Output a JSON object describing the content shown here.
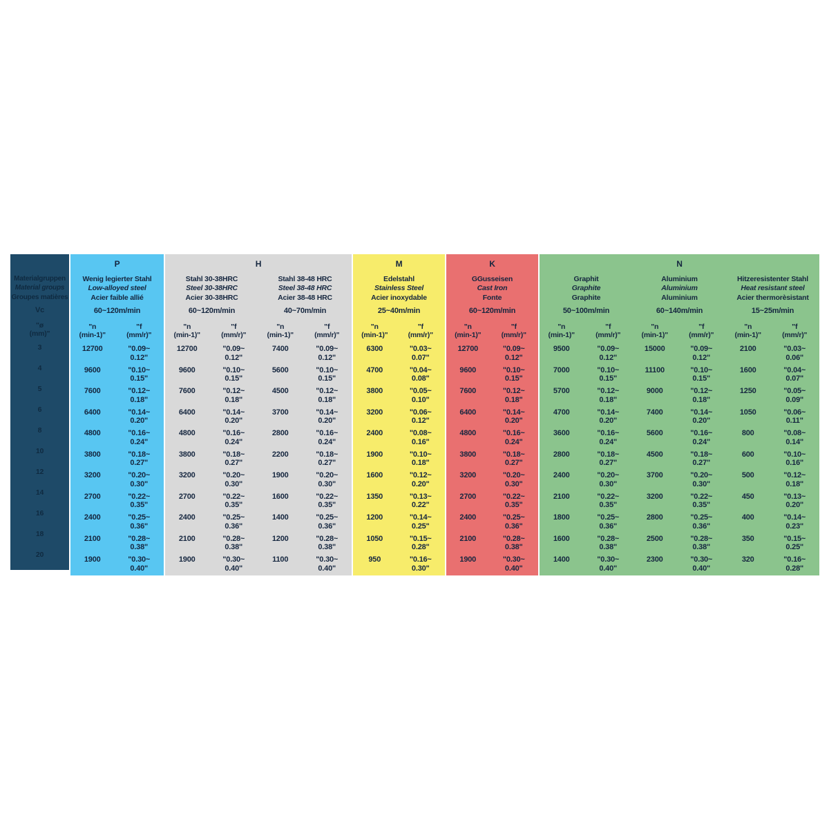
{
  "chart_data": {
    "type": "table",
    "left_column": {
      "bg": "#1E4A68",
      "title_lines": [
        "Materialgruppen",
        "Material groups",
        "Groupes matières"
      ],
      "vc_label": "Vc",
      "dia_header": "\"ø\n(mm)\"",
      "diameters": [
        "3",
        "4",
        "5",
        "6",
        "8",
        "10",
        "12",
        "14",
        "16",
        "18",
        "20"
      ]
    },
    "sub_headers": {
      "n": "\"n\n(min-1)\"",
      "f": "\"f\n(mm/r)\""
    },
    "groups": [
      {
        "letter": "P",
        "bg": "#58C6F2",
        "materials": [
          {
            "names": [
              "Wenig legierter Stahl",
              "Low-alloyed steel",
              "Acier faible allié"
            ],
            "vc": "60~120m/min",
            "n": [
              "12700",
              "9600",
              "7600",
              "6400",
              "4800",
              "3800",
              "3200",
              "2700",
              "2400",
              "2100",
              "1900"
            ],
            "f": [
              "\"0.09~\n0.12\"",
              "\"0.10~\n0.15\"",
              "\"0.12~\n0.18\"",
              "\"0.14~\n0.20\"",
              "\"0.16~\n0.24\"",
              "\"0.18~\n0.27\"",
              "\"0.20~\n0.30\"",
              "\"0.22~\n0.35\"",
              "\"0.25~\n0.36\"",
              "\"0.28~\n0.38\"",
              "\"0.30~\n0.40\""
            ]
          }
        ]
      },
      {
        "letter": "H",
        "bg": "#D9D9D9",
        "materials": [
          {
            "names": [
              "Stahl 30-38HRC",
              "Steel 30-38HRC",
              "Acier 30-38HRC"
            ],
            "vc": "60~120m/min",
            "n": [
              "12700",
              "9600",
              "7600",
              "6400",
              "4800",
              "3800",
              "3200",
              "2700",
              "2400",
              "2100",
              "1900"
            ],
            "f": [
              "\"0.09~\n0.12\"",
              "\"0.10~\n0.15\"",
              "\"0.12~\n0.18\"",
              "\"0.14~\n0.20\"",
              "\"0.16~\n0.24\"",
              "\"0.18~\n0.27\"",
              "\"0.20~\n0.30\"",
              "\"0.22~\n0.35\"",
              "\"0.25~\n0.36\"",
              "\"0.28~\n0.38\"",
              "\"0.30~\n0.40\""
            ]
          },
          {
            "names": [
              "Stahl 38-48 HRC",
              "Steel 38-48 HRC",
              "Acier 38-48 HRC"
            ],
            "vc": "40~70m/min",
            "n": [
              "7400",
              "5600",
              "4500",
              "3700",
              "2800",
              "2200",
              "1900",
              "1600",
              "1400",
              "1200",
              "1100"
            ],
            "f": [
              "\"0.09~\n0.12\"",
              "\"0.10~\n0.15\"",
              "\"0.12~\n0.18\"",
              "\"0.14~\n0.20\"",
              "\"0.16~\n0.24\"",
              "\"0.18~\n0.27\"",
              "\"0.20~\n0.30\"",
              "\"0.22~\n0.35\"",
              "\"0.25~\n0.36\"",
              "\"0.28~\n0.38\"",
              "\"0.30~\n0.40\""
            ]
          }
        ]
      },
      {
        "letter": "M",
        "bg": "#F7EC6B",
        "materials": [
          {
            "names": [
              "Edelstahl",
              "Stainless Steel",
              "Acier inoxydable"
            ],
            "vc": "25~40m/min",
            "n": [
              "6300",
              "4700",
              "3800",
              "3200",
              "2400",
              "1900",
              "1600",
              "1350",
              "1200",
              "1050",
              "950"
            ],
            "f": [
              "\"0.03~\n0.07\"",
              "\"0.04~\n0.08\"",
              "\"0.05~\n0.10\"",
              "\"0.06~\n0.12\"",
              "\"0.08~\n0.16\"",
              "\"0.10~\n0.18\"",
              "\"0.12~\n0.20\"",
              "\"0.13~\n0.22\"",
              "\"0.14~\n0.25\"",
              "\"0.15~\n0.28\"",
              "\"0.16~\n0.30\""
            ]
          }
        ]
      },
      {
        "letter": "K",
        "bg": "#E97070",
        "materials": [
          {
            "names": [
              "GGusseisen",
              "Cast Iron",
              "Fonte"
            ],
            "vc": "60~120m/min",
            "n": [
              "12700",
              "9600",
              "7600",
              "6400",
              "4800",
              "3800",
              "3200",
              "2700",
              "2400",
              "2100",
              "1900"
            ],
            "f": [
              "\"0.09~\n0.12\"",
              "\"0.10~\n0.15\"",
              "\"0.12~\n0.18\"",
              "\"0.14~\n0.20\"",
              "\"0.16~\n0.24\"",
              "\"0.18~\n0.27\"",
              "\"0.20~\n0.30\"",
              "\"0.22~\n0.35\"",
              "\"0.25~\n0.36\"",
              "\"0.28~\n0.38\"",
              "\"0.30~\n0.40\""
            ]
          }
        ]
      },
      {
        "letter": "N",
        "bg": "#8BC48D",
        "materials": [
          {
            "names": [
              "Graphit",
              "Graphite",
              "Graphite"
            ],
            "vc": "50~100m/min",
            "n": [
              "9500",
              "7000",
              "5700",
              "4700",
              "3600",
              "2800",
              "2400",
              "2100",
              "1800",
              "1600",
              "1400"
            ],
            "f": [
              "\"0.09~\n0.12\"",
              "\"0.10~\n0.15\"",
              "\"0.12~\n0.18\"",
              "\"0.14~\n0.20\"",
              "\"0.16~\n0.24\"",
              "\"0.18~\n0.27\"",
              "\"0.20~\n0.30\"",
              "\"0.22~\n0.35\"",
              "\"0.25~\n0.36\"",
              "\"0.28~\n0.38\"",
              "\"0.30~\n0.40\""
            ]
          },
          {
            "names": [
              "Aluminium",
              "Aluminium",
              "Aluminium"
            ],
            "vc": "60~140m/min",
            "n": [
              "15000",
              "11100",
              "9000",
              "7400",
              "5600",
              "4500",
              "3700",
              "3200",
              "2800",
              "2500",
              "2300"
            ],
            "f": [
              "\"0.09~\n0.12\"",
              "\"0.10~\n0.15\"",
              "\"0.12~\n0.18\"",
              "\"0.14~\n0.20\"",
              "\"0.16~\n0.24\"",
              "\"0.18~\n0.27\"",
              "\"0.20~\n0.30\"",
              "\"0.22~\n0.35\"",
              "\"0.25~\n0.36\"",
              "\"0.28~\n0.38\"",
              "\"0.30~\n0.40\""
            ]
          },
          {
            "names": [
              "Hitzeresistenter Stahl",
              "Heat resistant steel",
              "Acier thermorèsistant"
            ],
            "vc": "15~25m/min",
            "n": [
              "2100",
              "1600",
              "1250",
              "1050",
              "800",
              "600",
              "500",
              "450",
              "400",
              "350",
              "320"
            ],
            "f": [
              "\"0.03~\n0.06\"",
              "\"0.04~\n0.07\"",
              "\"0.05~\n0.09\"",
              "\"0.06~\n0.11\"",
              "\"0.08~\n0.14\"",
              "\"0.10~\n0.16\"",
              "\"0.12~\n0.18\"",
              "\"0.13~\n0.20\"",
              "\"0.14~\n0.23\"",
              "\"0.15~\n0.25\"",
              "\"0.16~\n0.28\""
            ]
          }
        ]
      }
    ]
  }
}
